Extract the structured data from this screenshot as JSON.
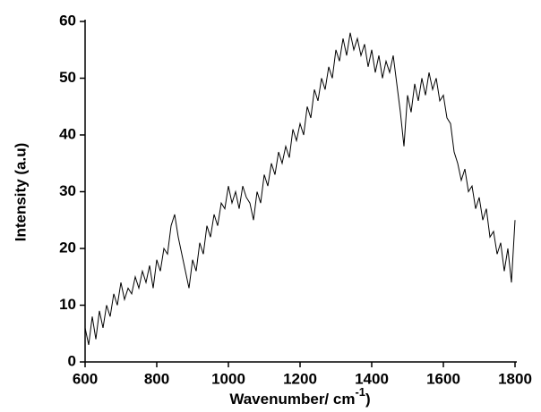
{
  "chart_data": {
    "type": "line",
    "x_label": "Wavenumber/ cm",
    "x_label_superscript": "-1",
    "x_label_end": ")",
    "y_label": "Intensity (a.u)",
    "x": [
      600,
      610,
      620,
      630,
      640,
      650,
      660,
      670,
      680,
      690,
      700,
      710,
      720,
      730,
      740,
      750,
      760,
      770,
      780,
      790,
      800,
      810,
      820,
      830,
      840,
      850,
      860,
      870,
      880,
      890,
      900,
      910,
      920,
      930,
      940,
      950,
      960,
      970,
      980,
      990,
      1000,
      1010,
      1020,
      1030,
      1040,
      1050,
      1060,
      1070,
      1080,
      1090,
      1100,
      1110,
      1120,
      1130,
      1140,
      1150,
      1160,
      1170,
      1180,
      1190,
      1200,
      1210,
      1220,
      1230,
      1240,
      1250,
      1260,
      1270,
      1280,
      1290,
      1300,
      1310,
      1320,
      1330,
      1340,
      1350,
      1360,
      1370,
      1380,
      1390,
      1400,
      1410,
      1420,
      1430,
      1440,
      1450,
      1460,
      1470,
      1480,
      1490,
      1500,
      1510,
      1520,
      1530,
      1540,
      1550,
      1560,
      1570,
      1580,
      1590,
      1600,
      1610,
      1620,
      1630,
      1640,
      1650,
      1660,
      1670,
      1680,
      1690,
      1700,
      1710,
      1720,
      1730,
      1740,
      1750,
      1760,
      1770,
      1780,
      1790,
      1800
    ],
    "series": [
      {
        "color": "#000000",
        "values": [
          6,
          3,
          8,
          4,
          9,
          6,
          10,
          8,
          12,
          10,
          14,
          11,
          13,
          12,
          15,
          13,
          16,
          14,
          17,
          13,
          18,
          16,
          20,
          19,
          24,
          26,
          22,
          19,
          16,
          13,
          18,
          16,
          21,
          19,
          24,
          22,
          26,
          24,
          28,
          27,
          31,
          28,
          30,
          27,
          31,
          29,
          28,
          25,
          30,
          28,
          33,
          31,
          35,
          33,
          37,
          35,
          38,
          36,
          41,
          39,
          42,
          40,
          45,
          43,
          48,
          46,
          50,
          48,
          52,
          50,
          55,
          53,
          57,
          54,
          58,
          55,
          57,
          54,
          56,
          52,
          55,
          51,
          54,
          50,
          53,
          51,
          54,
          49,
          44,
          38,
          47,
          44,
          49,
          46,
          50,
          47,
          51,
          48,
          50,
          46,
          47,
          43,
          42,
          37,
          35,
          32,
          34,
          30,
          31,
          27,
          29,
          25,
          27,
          22,
          23,
          19,
          21,
          16,
          20,
          14,
          25
        ]
      }
    ],
    "xlim": [
      600,
      1800
    ],
    "ylim": [
      0,
      60
    ],
    "xticks": [
      600,
      800,
      1000,
      1200,
      1400,
      1600,
      1800
    ],
    "yticks": [
      0,
      10,
      20,
      30,
      40,
      50,
      60
    ]
  }
}
